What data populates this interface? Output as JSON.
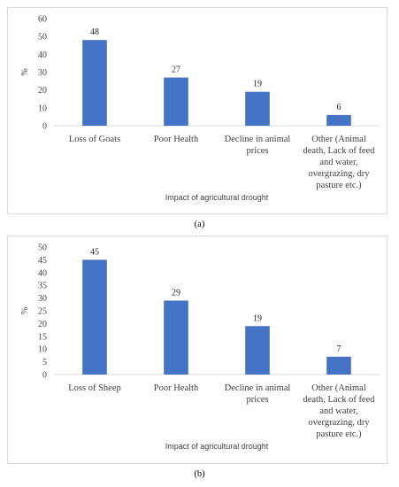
{
  "chart_data": [
    {
      "panel_label": "(a)",
      "type": "bar",
      "categories": [
        [
          "Loss of Goats"
        ],
        [
          "Poor Health"
        ],
        [
          "Decline in animal",
          "prices"
        ],
        [
          "Other (Animal",
          "death, Lack of feed",
          "and water,",
          "overgrazing, dry",
          "pasture etc.)"
        ]
      ],
      "values": [
        48,
        27,
        19,
        6
      ],
      "xlabel": "Impact of agricultural drought",
      "ylabel": "%",
      "ylim": [
        0,
        60
      ],
      "yticks": [
        0,
        10,
        20,
        30,
        40,
        50,
        60
      ],
      "grid": false,
      "bar_color": "#4472c4"
    },
    {
      "panel_label": "(b)",
      "type": "bar",
      "categories": [
        [
          "Loss of Sheep"
        ],
        [
          "Poor Health"
        ],
        [
          "Decline in animal",
          "prices"
        ],
        [
          "Other (Animal",
          "death, Lack of feed",
          "and water,",
          "overgrazing, dry",
          "pasture etc.)"
        ]
      ],
      "values": [
        45,
        29,
        19,
        7
      ],
      "xlabel": "Impact of agricultural drought",
      "ylabel": "%",
      "ylim": [
        0,
        50
      ],
      "yticks": [
        0,
        5,
        10,
        15,
        20,
        25,
        30,
        35,
        40,
        45,
        50
      ],
      "grid": false,
      "bar_color": "#4472c4"
    }
  ]
}
